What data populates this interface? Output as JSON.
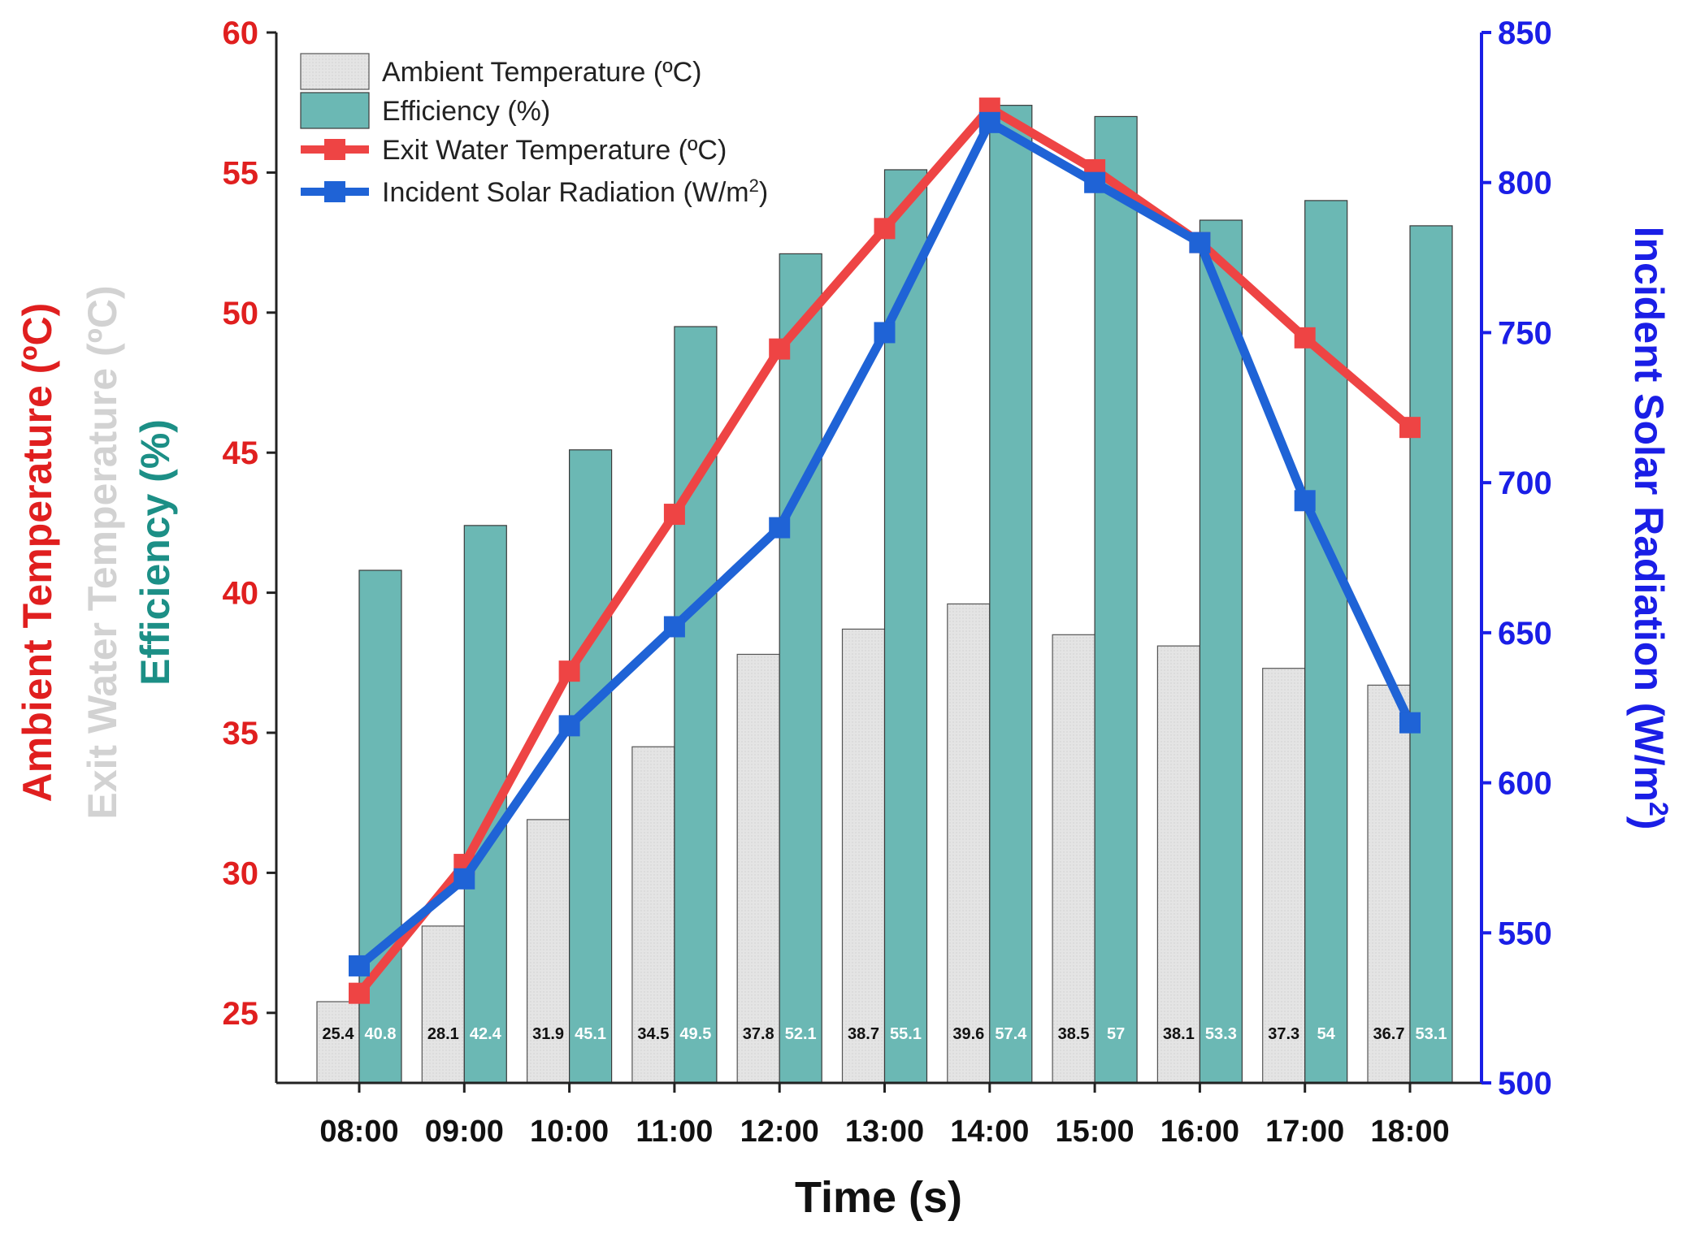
{
  "chart_data": {
    "type": "bar",
    "title": "",
    "xlabel": "Time (s)",
    "categories": [
      "08:00",
      "09:00",
      "10:00",
      "11:00",
      "12:00",
      "13:00",
      "14:00",
      "15:00",
      "16:00",
      "17:00",
      "18:00"
    ],
    "series": [
      {
        "name": "Ambient Temperature (ºC)",
        "type": "bar",
        "axis": "left",
        "color": "#e2e2e2",
        "values": [
          25.4,
          28.1,
          31.9,
          34.5,
          37.8,
          38.7,
          39.6,
          38.5,
          38.1,
          37.3,
          36.7
        ],
        "labels": [
          "25.4",
          "28.1",
          "31.9",
          "34.5",
          "37.8",
          "38.7",
          "39.6",
          "38.5",
          "38.1",
          "37.3",
          "36.7"
        ]
      },
      {
        "name": "Efficiency (%)",
        "type": "bar",
        "axis": "left",
        "color": "#6bb8b4",
        "values": [
          40.8,
          42.4,
          45.1,
          49.5,
          52.1,
          55.1,
          57.4,
          57,
          53.3,
          54,
          53.1
        ],
        "labels": [
          "40.8",
          "42.4",
          "45.1",
          "49.5",
          "52.1",
          "55.1",
          "57.4",
          "57",
          "53.3",
          "54",
          "53.1"
        ]
      },
      {
        "name": "Exit Water Temperature (ºC)",
        "type": "line",
        "axis": "left",
        "color": "#ee4444",
        "values": [
          25.7,
          30.3,
          37.2,
          42.8,
          48.7,
          53.0,
          57.3,
          55.1,
          52.5,
          49.1,
          45.9
        ]
      },
      {
        "name": "Incident Solar Radiation (W/m",
        "name_sup": "2",
        "name_end": ")",
        "type": "line",
        "axis": "right",
        "color": "#1f63d6",
        "values": [
          539,
          568,
          619,
          652,
          685,
          750,
          820,
          800,
          780,
          694,
          620
        ]
      }
    ],
    "y_left": {
      "ylim": [
        22.5,
        60
      ],
      "ticks": [
        25,
        30,
        35,
        40,
        45,
        50,
        55,
        60
      ],
      "color": "#e01f1f",
      "titles": [
        {
          "text": "Ambient Temperature (ºC)",
          "color": "#e01f1f"
        },
        {
          "text": "Exit Water Temperature (ºC)",
          "color": "#d2d2d2"
        },
        {
          "text": "Efficiency (%)",
          "color": "#1c8f86"
        }
      ]
    },
    "y_right": {
      "ylim": [
        500,
        850
      ],
      "ticks": [
        500,
        550,
        600,
        650,
        700,
        750,
        800,
        850
      ],
      "color": "#1a1ee6",
      "title": "Incident Solar Radiation (W/m",
      "title_sup": "2",
      "title_end": ")"
    },
    "legend": "top-left",
    "grid": false
  }
}
